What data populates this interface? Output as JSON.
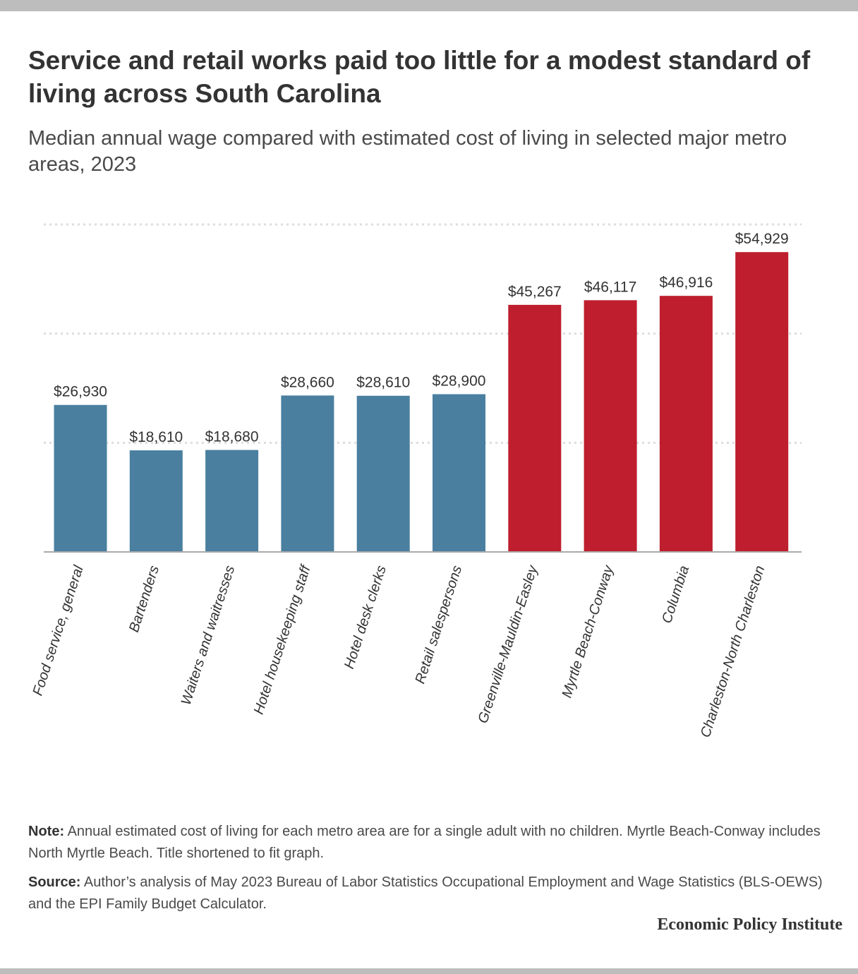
{
  "title": "Service and retail works paid too little for a modest standard of living across South Carolina",
  "subtitle": "Median annual wage compared with estimated cost of living in selected major metro areas, 2023",
  "colors": {
    "occupation_bar": "#4a7fa0",
    "metro_bar": "#be1e2d",
    "gridline": "#dddddd",
    "axis": "#aaaaaa",
    "text": "#333333"
  },
  "chart_data": {
    "type": "bar",
    "categories": [
      "Food service, general",
      "Bartenders",
      "Waiters and waitresses",
      "Hotel housekeeping staff",
      "Hotel desk clerks",
      "Retail salespersons",
      "Greenville-Mauldin-Easley",
      "Myrtle Beach-Conway",
      "Columbia",
      "Charleston-North Charleston"
    ],
    "values": [
      26930,
      18610,
      18680,
      28660,
      28610,
      28900,
      45267,
      46117,
      46916,
      54929
    ],
    "value_labels": [
      "$26,930",
      "$18,610",
      "$18,680",
      "$28,660",
      "$28,610",
      "$28,900",
      "$45,267",
      "$46,117",
      "$46,916",
      "$54,929"
    ],
    "groups": [
      "occupation",
      "occupation",
      "occupation",
      "occupation",
      "occupation",
      "occupation",
      "metro",
      "metro",
      "metro",
      "metro"
    ],
    "ylim": [
      0,
      60000
    ],
    "gridlines": [
      20000,
      40000,
      60000
    ],
    "grid": true,
    "xlabel": "",
    "ylabel": ""
  },
  "note": {
    "label": "Note:",
    "text": " Annual estimated cost of living for each metro area are for a single adult with no children. Myrtle Beach-Conway includes North Myrtle Beach. Title shortened to fit graph."
  },
  "source": {
    "label": "Source:",
    "text": " Author’s analysis of May 2023 Bureau of Labor Statistics Occupational Employment and Wage Statistics (BLS-OEWS) and the EPI Family Budget Calculator."
  },
  "brand": "Economic Policy Institute"
}
